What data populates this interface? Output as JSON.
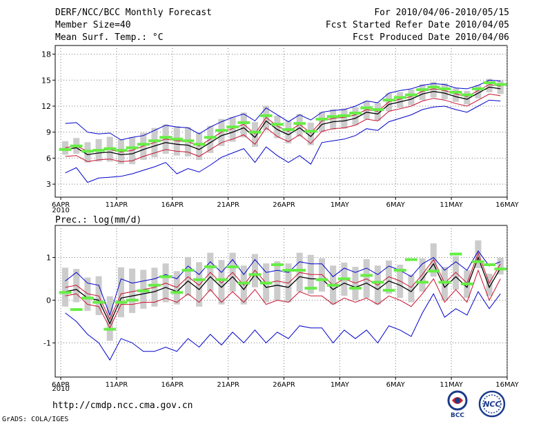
{
  "header": {
    "title": "DERF/NCC/BCC Monthly Forecast",
    "member_size": "Member Size=40",
    "variable": "Mean Surf. Temp.: °C",
    "forecast_period": "For 2010/04/06-2010/05/15",
    "started_date": "Fcst Started Refer Date 2010/04/05",
    "produced_date": "Fcst Produced Date 2010/04/06"
  },
  "footer": {
    "url": "http://cmdp.ncc.cma.gov.cn",
    "credit": "GrADS: COLA/IGES",
    "logo_left_text": "BCC",
    "logo_right_text": "NCC"
  },
  "colors": {
    "mean": "#000000",
    "inner_band": "#c8102e",
    "outer_band": "#0000cc",
    "obs_marker": "#66ee44",
    "ensemble_bar": "#cccccc"
  },
  "chart_data": [
    {
      "type": "line",
      "title": "Mean Surf. Temp.: °C",
      "x_tick_labels": [
        "6APR",
        "11APR",
        "16APR",
        "21APR",
        "26APR",
        "1MAY",
        "6MAY",
        "11MAY",
        "16MAY"
      ],
      "x_year_label": "2010",
      "y_ticks": [
        3,
        6,
        9,
        12,
        15,
        18
      ],
      "ylim": [
        1.5,
        19
      ],
      "grid": true,
      "days": 40,
      "series": [
        {
          "name": "mean",
          "values": [
            7.0,
            7.2,
            6.4,
            6.6,
            6.7,
            6.4,
            6.5,
            7.0,
            7.4,
            7.8,
            7.6,
            7.5,
            7.0,
            7.8,
            8.6,
            9.0,
            9.5,
            8.4,
            10.3,
            9.3,
            8.7,
            9.5,
            8.5,
            9.9,
            10.2,
            10.3,
            10.6,
            11.3,
            11.1,
            12.2,
            12.5,
            12.8,
            13.4,
            13.7,
            13.5,
            13.1,
            12.8,
            13.5,
            14.2,
            14.0
          ]
        },
        {
          "name": "inner_upper",
          "values": [
            7.2,
            7.4,
            6.8,
            6.9,
            7.0,
            6.7,
            6.9,
            7.4,
            7.8,
            8.2,
            8.0,
            7.9,
            7.4,
            8.2,
            9.0,
            9.4,
            9.9,
            8.8,
            10.7,
            9.7,
            9.1,
            9.9,
            8.9,
            10.3,
            10.6,
            10.7,
            11.0,
            11.6,
            11.4,
            12.5,
            12.8,
            13.1,
            13.7,
            14.0,
            13.8,
            13.4,
            13.1,
            13.8,
            14.5,
            14.3
          ]
        },
        {
          "name": "inner_lower",
          "values": [
            6.2,
            6.3,
            5.6,
            5.8,
            5.9,
            5.6,
            5.7,
            6.2,
            6.6,
            7.0,
            6.8,
            6.7,
            6.2,
            7.0,
            7.8,
            8.2,
            8.7,
            7.6,
            9.5,
            8.5,
            7.9,
            8.7,
            7.7,
            9.1,
            9.4,
            9.5,
            9.8,
            10.5,
            10.3,
            11.4,
            11.7,
            12.0,
            12.6,
            12.9,
            12.7,
            12.3,
            12.0,
            12.7,
            13.4,
            13.2
          ]
        },
        {
          "name": "outer_upper",
          "values": [
            10.0,
            10.1,
            9.0,
            8.8,
            8.9,
            8.1,
            8.4,
            8.6,
            9.2,
            9.8,
            9.6,
            9.5,
            8.8,
            9.6,
            10.2,
            10.7,
            11.1,
            10.3,
            11.8,
            11.0,
            10.2,
            11.0,
            10.4,
            11.3,
            11.5,
            11.6,
            12.0,
            12.6,
            12.4,
            13.5,
            13.8,
            14.0,
            14.4,
            14.6,
            14.5,
            14.1,
            14.0,
            14.4,
            15.0,
            14.9
          ]
        },
        {
          "name": "outer_lower",
          "values": [
            4.3,
            4.9,
            3.2,
            3.7,
            3.8,
            3.9,
            4.2,
            4.6,
            5.0,
            5.5,
            4.2,
            4.8,
            4.4,
            5.2,
            6.1,
            6.6,
            7.1,
            5.5,
            7.3,
            6.3,
            5.5,
            6.3,
            5.3,
            7.8,
            8.0,
            8.2,
            8.6,
            9.4,
            9.2,
            10.2,
            10.6,
            11.0,
            11.6,
            11.9,
            12.0,
            11.6,
            11.3,
            12.0,
            12.7,
            12.6
          ]
        },
        {
          "name": "obs",
          "values": [
            7.0,
            7.4,
            6.8,
            6.9,
            7.1,
            6.9,
            7.2,
            7.6,
            8.0,
            8.4,
            8.2,
            8.0,
            7.6,
            8.4,
            9.2,
            9.6,
            10.1,
            9.0,
            10.9,
            9.9,
            9.3,
            10.0,
            9.1,
            10.5,
            10.8,
            10.9,
            11.2,
            11.8,
            11.6,
            12.7,
            13.0,
            13.3,
            13.9,
            14.2,
            14.0,
            13.6,
            13.3,
            14.0,
            14.7,
            14.5
          ]
        }
      ],
      "ensemble_spread_half": [
        0.6,
        0.7,
        0.9,
        1.0,
        1.1,
        1.1,
        1.2,
        1.2,
        1.3,
        1.3,
        1.3,
        1.3,
        1.2,
        1.2,
        1.2,
        1.1,
        1.1,
        1.1,
        1.1,
        1.0,
        1.0,
        1.0,
        1.0,
        0.9,
        0.9,
        0.9,
        0.8,
        0.8,
        0.8,
        0.8,
        0.7,
        0.7,
        0.7,
        0.7,
        0.7,
        0.6,
        0.6,
        0.6,
        0.6,
        0.6
      ]
    },
    {
      "type": "line",
      "title": "Prec.: log(mm/d)",
      "x_tick_labels": [
        "6APR",
        "11APR",
        "16APR",
        "21APR",
        "26APR",
        "1MAY",
        "6MAY",
        "11MAY",
        "16MAY"
      ],
      "x_year_label": "2010",
      "y_ticks": [
        -1,
        0,
        1
      ],
      "ylim": [
        -1.8,
        1.75
      ],
      "grid": true,
      "days": 40,
      "series": [
        {
          "name": "mean",
          "values": [
            0.2,
            0.25,
            0.05,
            0.0,
            -0.55,
            0.05,
            0.1,
            0.15,
            0.2,
            0.3,
            0.2,
            0.45,
            0.25,
            0.55,
            0.3,
            0.55,
            0.25,
            0.6,
            0.3,
            0.35,
            0.3,
            0.55,
            0.5,
            0.5,
            0.25,
            0.4,
            0.3,
            0.4,
            0.25,
            0.45,
            0.35,
            0.2,
            0.5,
            0.85,
            0.3,
            0.55,
            0.3,
            1.0,
            0.3,
            0.75
          ]
        },
        {
          "name": "inner_upper",
          "values": [
            0.3,
            0.35,
            0.15,
            0.1,
            -0.45,
            0.15,
            0.2,
            0.25,
            0.3,
            0.4,
            0.3,
            0.55,
            0.35,
            0.65,
            0.4,
            0.65,
            0.35,
            0.7,
            0.4,
            0.45,
            0.4,
            0.65,
            0.6,
            0.6,
            0.35,
            0.5,
            0.4,
            0.5,
            0.35,
            0.55,
            0.45,
            0.3,
            0.6,
            0.95,
            0.4,
            0.65,
            0.4,
            1.1,
            0.4,
            0.85
          ]
        },
        {
          "name": "inner_lower",
          "values": [
            0.1,
            0.15,
            -0.1,
            -0.15,
            -0.65,
            -0.1,
            -0.1,
            -0.05,
            -0.05,
            0.05,
            -0.05,
            0.15,
            -0.05,
            0.25,
            -0.05,
            0.2,
            -0.05,
            0.25,
            -0.1,
            0.0,
            -0.05,
            0.2,
            0.1,
            0.1,
            -0.1,
            0.05,
            -0.05,
            0.05,
            -0.1,
            0.1,
            0.0,
            -0.15,
            0.15,
            0.5,
            -0.05,
            0.25,
            -0.05,
            0.7,
            0.0,
            0.5
          ]
        },
        {
          "name": "outer_upper",
          "values": [
            0.45,
            0.65,
            0.4,
            0.35,
            -0.35,
            0.5,
            0.4,
            0.45,
            0.5,
            0.6,
            0.5,
            0.8,
            0.6,
            0.9,
            0.65,
            0.95,
            0.6,
            0.95,
            0.65,
            0.7,
            0.65,
            0.9,
            0.85,
            0.85,
            0.55,
            0.75,
            0.65,
            0.75,
            0.6,
            0.8,
            0.7,
            0.55,
            0.85,
            1.0,
            0.7,
            0.9,
            0.7,
            1.15,
            0.8,
            0.9
          ]
        },
        {
          "name": "outer_lower",
          "values": [
            -0.3,
            -0.5,
            -0.8,
            -1.0,
            -1.4,
            -0.9,
            -1.0,
            -1.2,
            -1.2,
            -1.1,
            -1.2,
            -0.9,
            -1.1,
            -0.8,
            -1.05,
            -0.75,
            -1.0,
            -0.7,
            -1.0,
            -0.75,
            -0.9,
            -0.6,
            -0.65,
            -0.65,
            -1.0,
            -0.7,
            -0.9,
            -0.7,
            -1.0,
            -0.6,
            -0.7,
            -0.85,
            -0.3,
            0.15,
            -0.4,
            -0.2,
            -0.35,
            0.2,
            -0.2,
            0.15
          ]
        },
        {
          "name": "obs",
          "values": [
            0.18,
            -0.22,
            0.05,
            -0.05,
            -0.68,
            -0.05,
            0.0,
            0.22,
            0.35,
            0.55,
            0.18,
            0.7,
            0.48,
            0.78,
            0.48,
            0.78,
            0.4,
            0.6,
            0.4,
            0.83,
            0.7,
            0.7,
            0.28,
            0.48,
            0.35,
            0.5,
            0.28,
            0.58,
            0.42,
            0.23,
            0.7,
            0.95,
            0.42,
            0.68,
            0.42,
            1.08,
            0.38,
            0.9,
            0.83,
            0.73
          ]
        }
      ],
      "ensemble_spread_half": [
        0.35,
        0.3,
        0.3,
        0.35,
        0.4,
        0.45,
        0.4,
        0.35,
        0.35,
        0.35,
        0.3,
        0.35,
        0.4,
        0.35,
        0.4,
        0.35,
        0.35,
        0.3,
        0.35,
        0.35,
        0.35,
        0.35,
        0.35,
        0.3,
        0.35,
        0.3,
        0.3,
        0.35,
        0.35,
        0.3,
        0.3,
        0.25,
        0.3,
        0.3,
        0.3,
        0.3,
        0.25,
        0.25,
        0.2,
        0.15
      ]
    }
  ]
}
